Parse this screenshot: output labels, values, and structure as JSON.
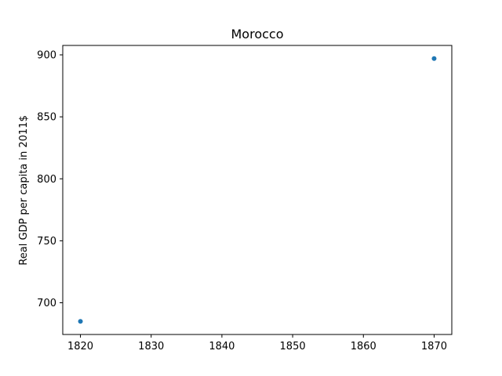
{
  "chart_data": {
    "type": "scatter",
    "title": "Morocco",
    "xlabel": "",
    "ylabel": "Real GDP per capita in 2011$",
    "x": [
      1820,
      1870
    ],
    "y": [
      685,
      897
    ],
    "xlim": [
      1817.5,
      1872.5
    ],
    "ylim": [
      674.4,
      907.6
    ],
    "xticks": [
      1820,
      1830,
      1840,
      1850,
      1860,
      1870
    ],
    "yticks": [
      700,
      750,
      800,
      850,
      900
    ],
    "grid": false,
    "marker_color": "#1f77b4"
  }
}
